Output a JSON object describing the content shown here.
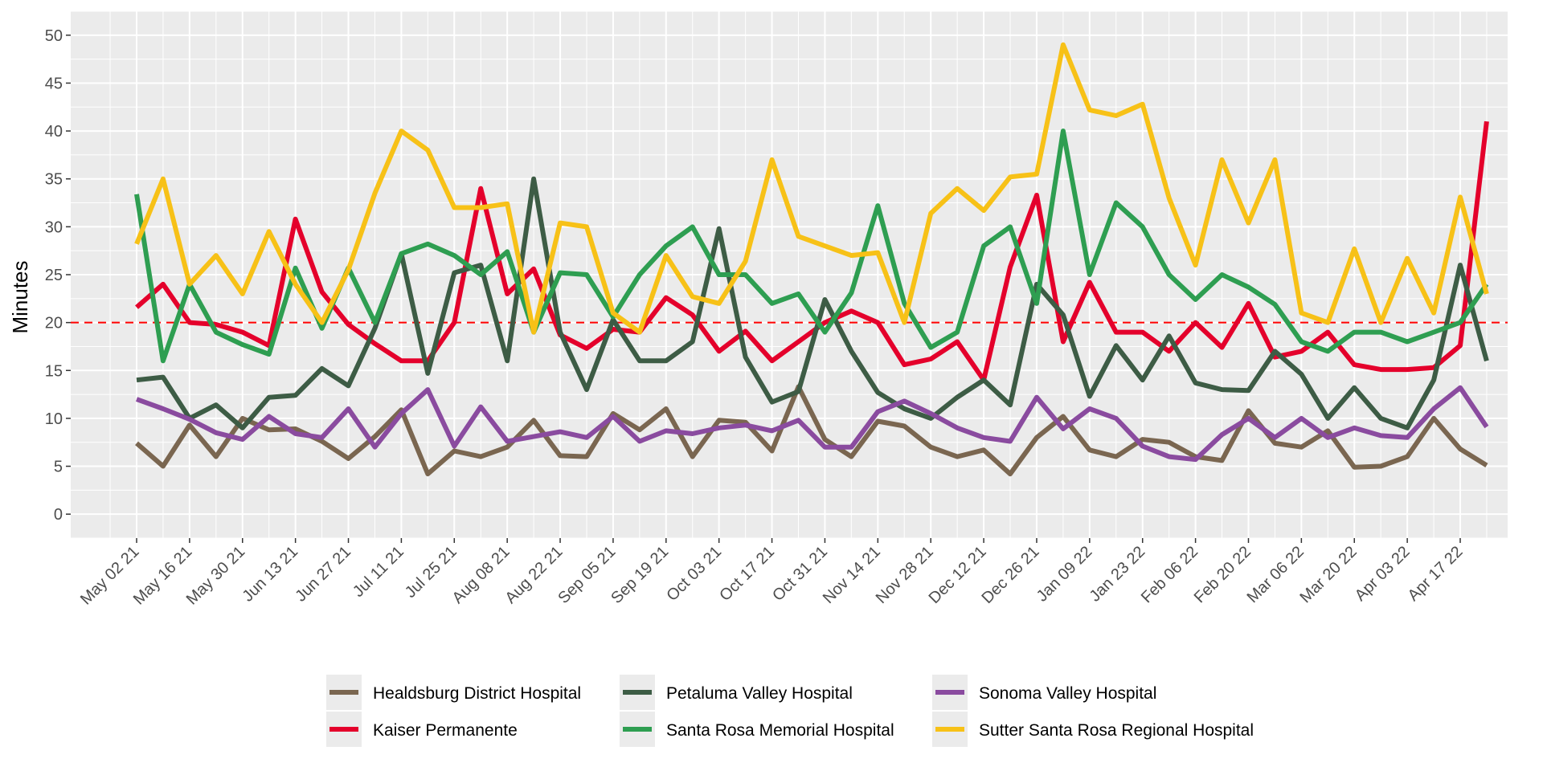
{
  "chart_data": {
    "type": "line",
    "title": "",
    "xlabel": "",
    "ylabel": "Minutes",
    "ylim": [
      -2.5,
      52.5
    ],
    "y_ticks": [
      0,
      5,
      10,
      15,
      20,
      25,
      30,
      35,
      40,
      45,
      50
    ],
    "x_start_label": "May 02 21",
    "x_tick_labels": [
      "May 02 21",
      "May 16 21",
      "May 30 21",
      "Jun 13 21",
      "Jun 27 21",
      "Jul 11 21",
      "Jul 25 21",
      "Aug 08 21",
      "Aug 22 21",
      "Sep 05 21",
      "Sep 19 21",
      "Oct 03 21",
      "Oct 17 21",
      "Oct 31 21",
      "Nov 14 21",
      "Nov 28 21",
      "Dec 12 21",
      "Dec 26 21",
      "Jan 09 22",
      "Jan 23 22",
      "Feb 06 22",
      "Feb 20 22",
      "Mar 06 22",
      "Mar 20 22",
      "Apr 03 22",
      "Apr 17 22"
    ],
    "x": [
      "May 02 21",
      "May 09 21",
      "May 16 21",
      "May 23 21",
      "May 30 21",
      "Jun 06 21",
      "Jun 13 21",
      "Jun 20 21",
      "Jun 27 21",
      "Jul 04 21",
      "Jul 11 21",
      "Jul 18 21",
      "Jul 25 21",
      "Aug 01 21",
      "Aug 08 21",
      "Aug 15 21",
      "Aug 22 21",
      "Aug 29 21",
      "Sep 05 21",
      "Sep 12 21",
      "Sep 19 21",
      "Sep 26 21",
      "Oct 03 21",
      "Oct 10 21",
      "Oct 17 21",
      "Oct 24 21",
      "Oct 31 21",
      "Nov 07 21",
      "Nov 14 21",
      "Nov 21 21",
      "Nov 28 21",
      "Dec 05 21",
      "Dec 12 21",
      "Dec 19 21",
      "Dec 26 21",
      "Jan 02 22",
      "Jan 09 22",
      "Jan 16 22",
      "Jan 23 22",
      "Jan 30 22",
      "Feb 06 22",
      "Feb 13 22",
      "Feb 20 22",
      "Feb 27 22",
      "Mar 06 22",
      "Mar 13 22",
      "Mar 20 22",
      "Mar 27 22",
      "Apr 03 22",
      "Apr 10 22",
      "Apr 17 22",
      "Apr 24 22"
    ],
    "reference_line": {
      "y": 20,
      "color": "#ff0000",
      "style": "dashed"
    },
    "grid": true,
    "legend_position": "bottom",
    "series": [
      {
        "name": "Healdsburg District Hospital",
        "color": "#7a6650",
        "values": [
          7.4,
          5,
          9.3,
          6,
          10,
          8.8,
          8.9,
          7.6,
          5.8,
          8.1,
          10.9,
          4.2,
          6.6,
          6,
          7,
          9.8,
          6.1,
          6,
          10.5,
          8.8,
          11,
          6,
          9.8,
          9.6,
          6.6,
          13.3,
          7.8,
          6,
          9.7,
          9.2,
          7,
          6,
          6.7,
          4.2,
          8,
          10.2,
          6.7,
          6,
          7.8,
          7.5,
          6,
          5.6,
          10.8,
          7.4,
          7,
          8.7,
          4.9,
          5,
          6,
          10,
          6.8,
          5.1
        ]
      },
      {
        "name": "Kaiser Permanente",
        "color": "#e4002b",
        "values": [
          21.6,
          24,
          20,
          19.8,
          19,
          17.6,
          30.8,
          23.2,
          19.8,
          17.8,
          16,
          16,
          20,
          34,
          23,
          25.6,
          18.7,
          17.3,
          19.3,
          19,
          22.6,
          20.8,
          17,
          19.1,
          16,
          18,
          20,
          21.2,
          20,
          15.6,
          16.2,
          18,
          14,
          25.8,
          33.3,
          18,
          24.2,
          19,
          19,
          17,
          20,
          17.4,
          22,
          16.4,
          17,
          19,
          15.6,
          15.1,
          15.1,
          15.3,
          17.6,
          41
        ]
      },
      {
        "name": "Petaluma Valley Hospital",
        "color": "#3d5c45",
        "values": [
          14,
          14.3,
          10,
          11.4,
          9,
          12.2,
          12.4,
          15.2,
          13.4,
          19.4,
          27.2,
          14.7,
          25.2,
          26,
          16,
          35,
          19,
          13,
          20.3,
          16,
          16,
          18,
          29.8,
          16.4,
          11.7,
          12.8,
          22.4,
          17,
          12.7,
          11,
          10,
          12.2,
          14,
          11.4,
          24,
          20.8,
          12.3,
          17.6,
          14,
          18.6,
          13.7,
          13,
          12.9,
          17,
          14.6,
          10,
          13.2,
          10,
          9,
          14,
          26,
          16
        ]
      },
      {
        "name": "Santa Rosa Memorial Hospital",
        "color": "#2e9e51",
        "values": [
          33.4,
          16,
          24,
          19,
          17.7,
          16.7,
          25.7,
          19.4,
          25.7,
          20,
          27.2,
          28.2,
          27,
          25,
          27.4,
          19,
          25.2,
          25,
          20.6,
          25,
          28,
          30,
          25,
          25,
          22,
          23,
          19,
          23.1,
          32.2,
          22,
          17.4,
          19,
          28,
          30,
          22,
          40,
          25,
          32.5,
          30,
          25,
          22.4,
          25,
          23.7,
          21.9,
          18,
          17,
          19,
          19,
          18,
          19,
          20,
          24
        ]
      },
      {
        "name": "Sonoma Valley Hospital",
        "color": "#8a4b9f",
        "values": [
          12,
          11,
          9.9,
          8.5,
          7.8,
          10.2,
          8.4,
          8,
          11,
          7,
          10.5,
          13,
          7.1,
          11.2,
          7.6,
          8.1,
          8.6,
          8,
          10.2,
          7.6,
          8.7,
          8.4,
          9,
          9.3,
          8.7,
          9.8,
          7,
          7,
          10.7,
          11.8,
          10.5,
          9,
          8,
          7.6,
          12.2,
          8.9,
          11,
          10,
          7.1,
          6,
          5.7,
          8.3,
          10,
          8,
          10,
          8,
          9,
          8.2,
          8,
          11,
          13.2,
          9.1
        ]
      },
      {
        "name": "Sutter Santa Rosa Regional Hospital",
        "color": "#f7c117",
        "values": [
          28.2,
          35,
          24,
          27,
          23,
          29.5,
          24,
          20,
          25.5,
          33.5,
          40,
          38,
          32,
          32,
          32.4,
          19,
          30.4,
          30,
          21,
          19,
          27,
          22.7,
          22,
          26.4,
          37,
          29,
          28,
          27,
          27.3,
          20,
          31.4,
          34,
          31.7,
          35.2,
          35.5,
          49,
          42.2,
          41.6,
          42.8,
          33,
          26,
          37,
          30.4,
          37,
          21,
          20,
          27.7,
          20,
          26.7,
          21,
          33.1,
          23
        ]
      }
    ]
  }
}
